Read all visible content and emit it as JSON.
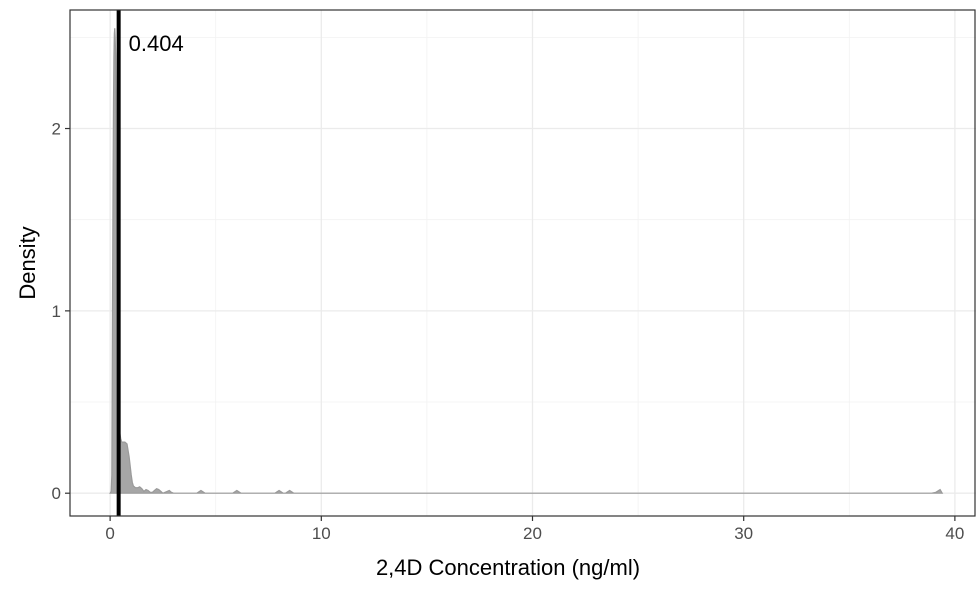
{
  "chart_data": {
    "type": "area",
    "title": "",
    "xlabel": "2,4D Concentration (ng/ml)",
    "ylabel": "Density",
    "xlim": [
      -1.9,
      41
    ],
    "ylim": [
      -0.125,
      2.65
    ],
    "x_ticks": [
      0,
      10,
      20,
      30,
      40
    ],
    "x_tick_labels": [
      "0",
      "10",
      "20",
      "30",
      "40"
    ],
    "y_ticks": [
      0,
      1,
      2
    ],
    "y_tick_labels": [
      "0",
      "1",
      "2"
    ],
    "grid": true,
    "legend": "none",
    "series": [
      {
        "fill_color": "#a6a6a6",
        "x": [
          0.0,
          0.05,
          0.08,
          0.11,
          0.14,
          0.16,
          0.18,
          0.2,
          0.22,
          0.24,
          0.26,
          0.28,
          0.3,
          0.32,
          0.34,
          0.36,
          0.38,
          0.4,
          0.42,
          0.44,
          0.46,
          0.5,
          0.55,
          0.6,
          0.7,
          0.8,
          0.9,
          1.0,
          1.05,
          1.1,
          1.2,
          1.3,
          1.4,
          1.5,
          1.6,
          1.7,
          1.8,
          1.9,
          2.0,
          2.1,
          2.2,
          2.3,
          2.4,
          2.5,
          2.6,
          2.7,
          2.8,
          2.9,
          3.0,
          4.1,
          4.3,
          4.5,
          5.8,
          6.0,
          6.2,
          7.8,
          8.0,
          8.2,
          8.3,
          8.5,
          8.7,
          38.9,
          39.1,
          39.3,
          39.4
        ],
        "y": [
          0.0,
          0.01,
          0.1,
          1.0,
          1.75,
          2.15,
          2.4,
          2.52,
          2.55,
          2.5,
          2.4,
          2.1,
          1.6,
          1.2,
          0.95,
          0.75,
          0.6,
          0.5,
          0.42,
          0.36,
          0.33,
          0.3,
          0.28,
          0.28,
          0.28,
          0.27,
          0.2,
          0.1,
          0.06,
          0.04,
          0.03,
          0.03,
          0.035,
          0.025,
          0.01,
          0.02,
          0.015,
          0.005,
          0.005,
          0.015,
          0.025,
          0.02,
          0.01,
          0.0,
          0.005,
          0.01,
          0.015,
          0.005,
          0.0,
          0.0,
          0.015,
          0.0,
          0.0,
          0.015,
          0.0,
          0.0,
          0.015,
          0.0,
          0.0,
          0.015,
          0.0,
          0.0,
          0.005,
          0.02,
          0.0
        ]
      }
    ],
    "vline": {
      "x": 0.404,
      "label": "0.404",
      "color": "#000000"
    }
  }
}
